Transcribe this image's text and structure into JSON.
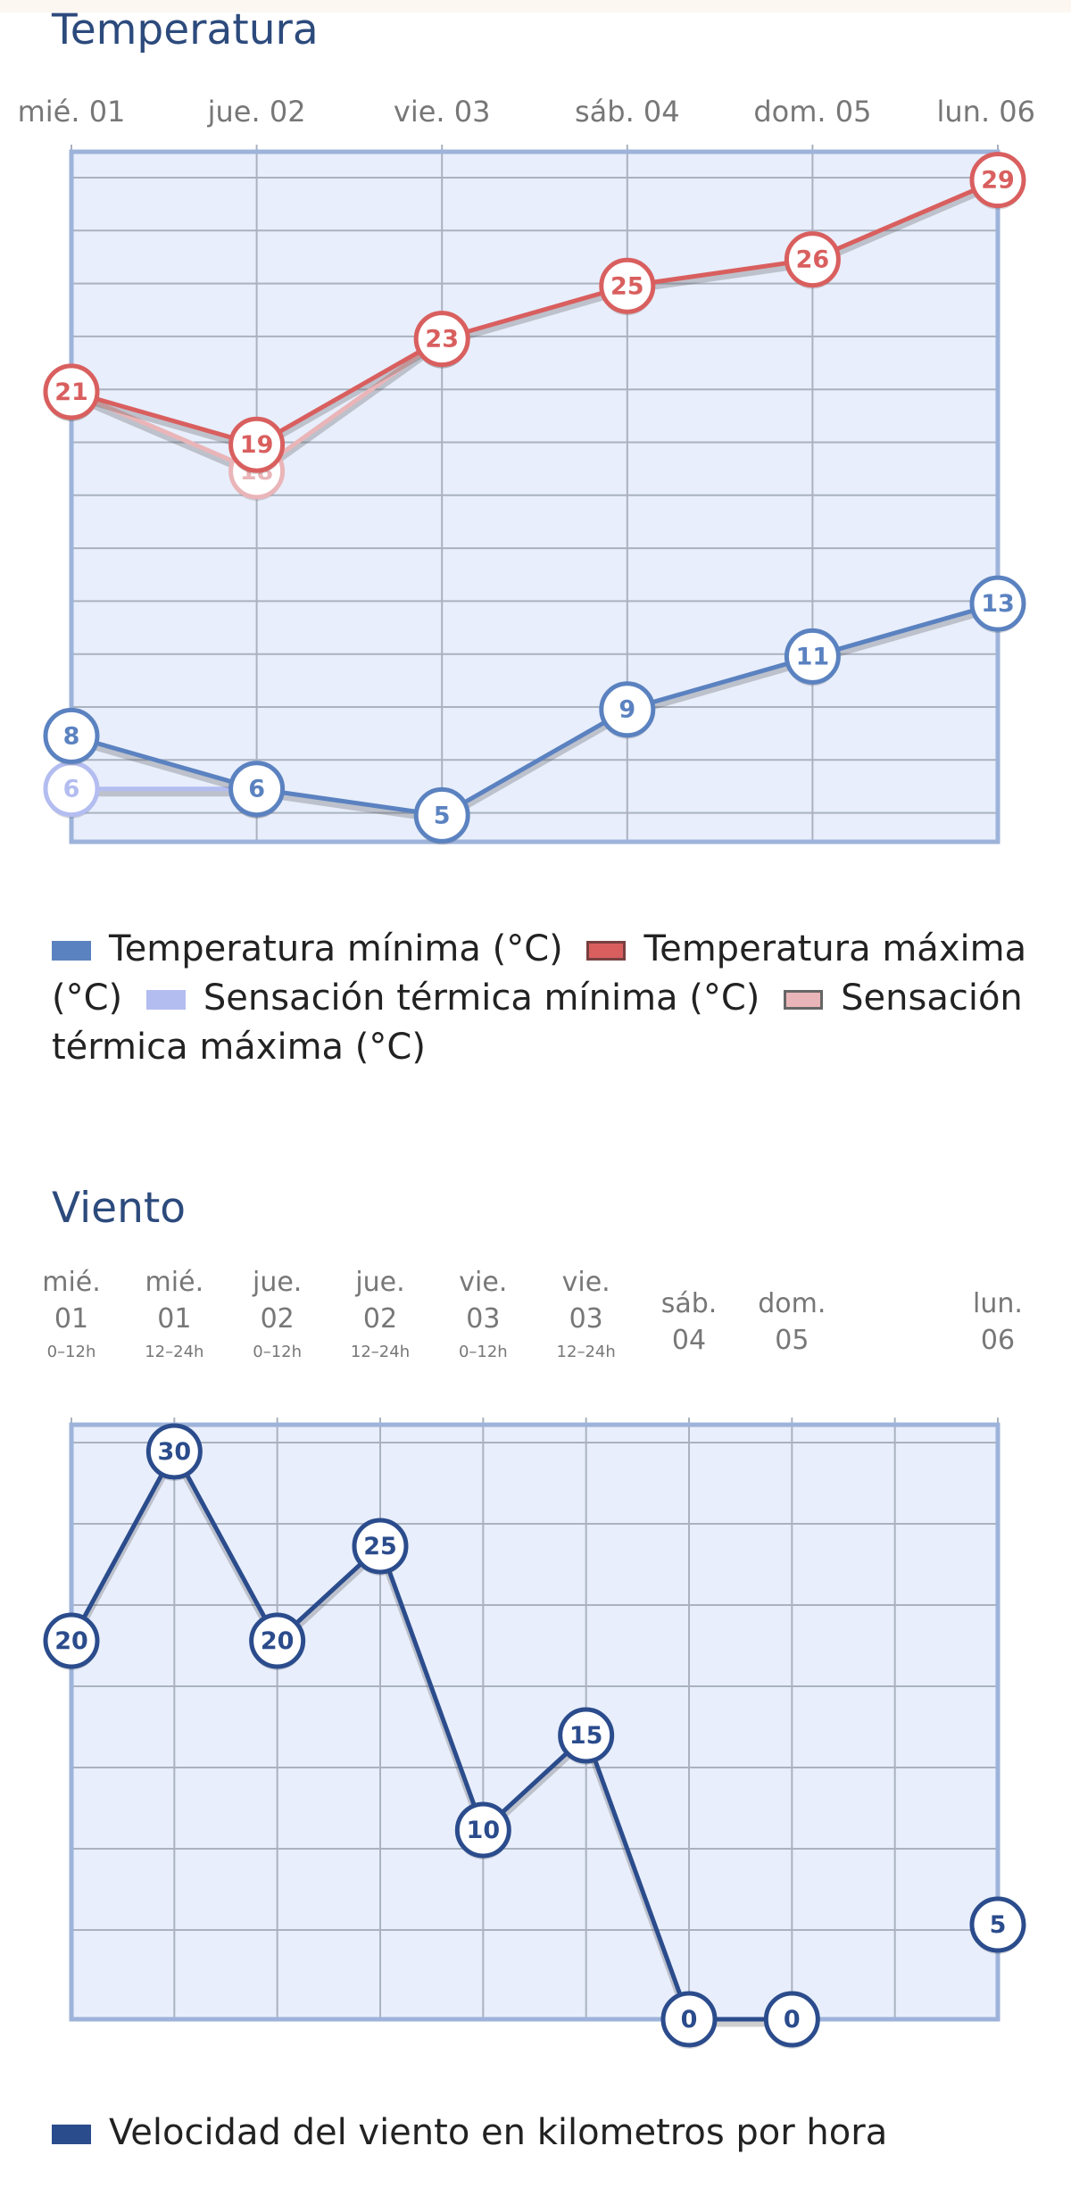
{
  "chart_data": [
    {
      "type": "line",
      "title": "Temperatura",
      "categories": [
        "mié. 01",
        "jue. 02",
        "vie. 03",
        "sáb. 04",
        "dom. 05",
        "lun. 06"
      ],
      "ylim": [
        4,
        30
      ],
      "grid": true,
      "legend_position": "bottom",
      "series": [
        {
          "name": "Temperatura mínima (°C)",
          "values": [
            8,
            6,
            5,
            9,
            11,
            13
          ],
          "color": "#5b82c0",
          "swatch_border": "#5b82c0"
        },
        {
          "name": "Temperatura máxima (°C)",
          "values": [
            21,
            19,
            23,
            25,
            26,
            29
          ],
          "color": "#d95f5f",
          "swatch_border": "#7a4040"
        },
        {
          "name": "Sensación térmica mínima (°C)",
          "values": [
            6,
            6,
            null,
            null,
            null,
            null
          ],
          "color": "#b3bdf0",
          "swatch_border": "#b3bdf0"
        },
        {
          "name": "Sensación térmica máxima (°C)",
          "values": [
            21,
            18,
            23,
            null,
            null,
            null
          ],
          "color": "#eab5b8",
          "swatch_border": "#666666"
        }
      ]
    },
    {
      "type": "line",
      "title": "Viento",
      "categories": [
        {
          "line1": "mié.",
          "line2": "01",
          "line3": "0–12h"
        },
        {
          "line1": "mié.",
          "line2": "01",
          "line3": "12–24h"
        },
        {
          "line1": "jue.",
          "line2": "02",
          "line3": "0–12h"
        },
        {
          "line1": "jue.",
          "line2": "02",
          "line3": "12–24h"
        },
        {
          "line1": "vie.",
          "line2": "03",
          "line3": "0–12h"
        },
        {
          "line1": "vie.",
          "line2": "03",
          "line3": "12–24h"
        },
        {
          "line1": "sáb.",
          "line2": "04",
          "line3": ""
        },
        {
          "line1": "dom.",
          "line2": "05",
          "line3": ""
        },
        {
          "line1": "",
          "line2": "",
          "line3": ""
        },
        {
          "line1": "lun.",
          "line2": "06",
          "line3": ""
        }
      ],
      "ylim": [
        0,
        35
      ],
      "grid": true,
      "legend_position": "bottom",
      "series": [
        {
          "name": "Velocidad del viento en kilometros por hora",
          "values": [
            20,
            30,
            20,
            25,
            10,
            15,
            0,
            0,
            null,
            5
          ],
          "color": "#2b4c8c",
          "swatch_border": "#2b4c8c"
        }
      ]
    }
  ]
}
